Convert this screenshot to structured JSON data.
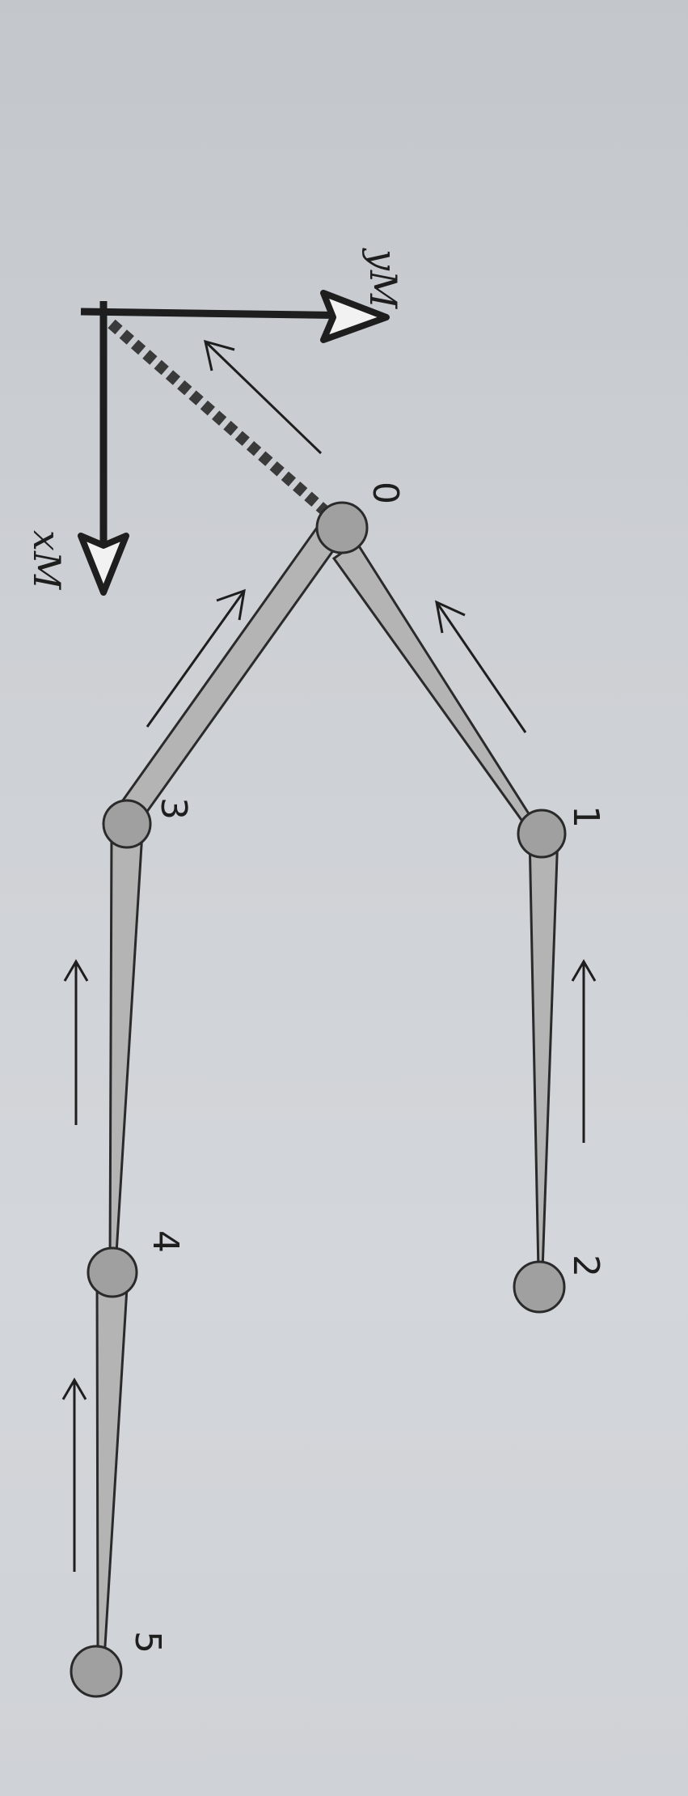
{
  "diagram": {
    "axes": {
      "x_label": "xM",
      "y_label": "yM"
    },
    "joints": [
      {
        "id": "0",
        "label": "0"
      },
      {
        "id": "1",
        "label": "1"
      },
      {
        "id": "2",
        "label": "2"
      },
      {
        "id": "3",
        "label": "3"
      },
      {
        "id": "4",
        "label": "4"
      },
      {
        "id": "5",
        "label": "5"
      }
    ],
    "links": [
      {
        "from": "1",
        "to": "0"
      },
      {
        "from": "2",
        "to": "1"
      },
      {
        "from": "3",
        "to": "0"
      },
      {
        "from": "4",
        "to": "3"
      },
      {
        "from": "5",
        "to": "4"
      }
    ],
    "root_link": {
      "from": "0",
      "to": "origin",
      "style": "dashed"
    },
    "colors": {
      "bone_fill": "#b4b4b4",
      "joint_fill": "#a0a0a0",
      "ink": "#1e1e1e"
    }
  }
}
